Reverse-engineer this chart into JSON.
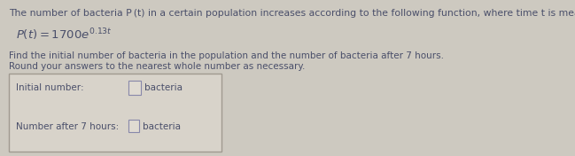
{
  "title_line": "The number of bacteria P (t) in a certain population increases according to the following function, where time t is measured in hours.",
  "instruction_line1": "Find the initial number of bacteria in the population and the number of bacteria after 7 hours.",
  "instruction_line2": "Round your answers to the nearest whole number as necessary.",
  "label1": "Initial number:",
  "label2": "Number after 7 hours:",
  "unit": "bacteria",
  "bg_color": "#cdc9c0",
  "box_bg": "#d8d3ca",
  "box_border": "#a09a90",
  "text_color": "#4a4f6a",
  "title_fontsize": 7.8,
  "body_fontsize": 7.5,
  "formula_fontsize": 9.5,
  "input_box_color": "#e0dbd2",
  "input_box_border": "#8888aa"
}
